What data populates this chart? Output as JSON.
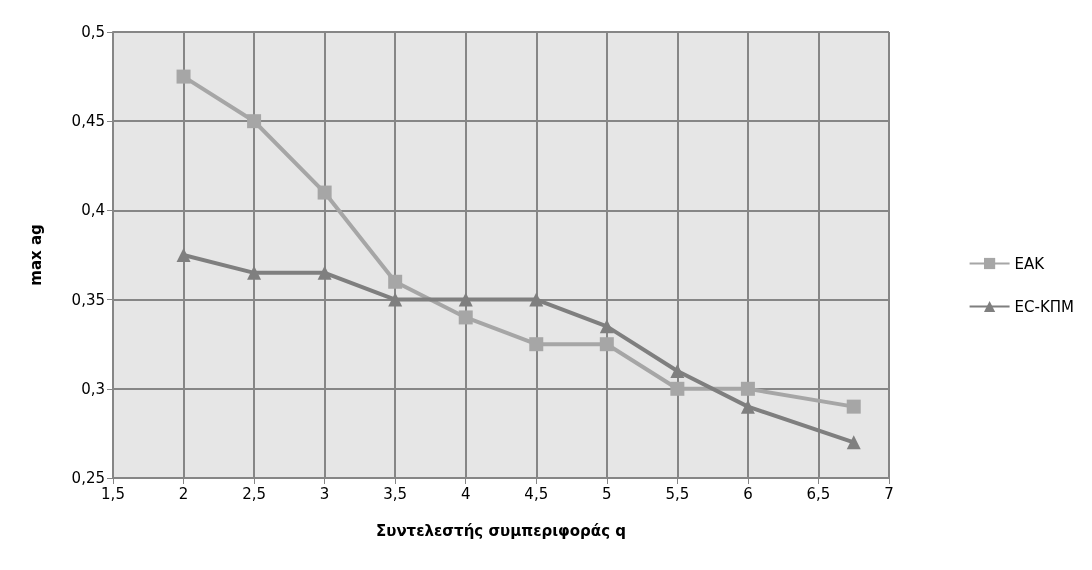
{
  "chart_data": {
    "type": "line",
    "xlabel": "Συντελεστής συμπεριφοράς q",
    "ylabel": "max ag",
    "x": [
      2,
      2.5,
      3,
      3.5,
      4,
      4.5,
      5,
      5.5,
      6,
      6.75
    ],
    "series": [
      {
        "name": "ΕΑΚ",
        "color": "#a6a6a6",
        "marker": "square",
        "values": [
          0.475,
          0.45,
          0.41,
          0.36,
          0.34,
          0.325,
          0.325,
          0.3,
          0.3,
          0.29
        ]
      },
      {
        "name": "EC-ΚΠΜ",
        "color": "#7f7f7f",
        "marker": "triangle",
        "values": [
          0.375,
          0.365,
          0.365,
          0.35,
          0.35,
          0.35,
          0.335,
          0.31,
          0.29,
          0.27
        ]
      }
    ],
    "xlim": [
      1.5,
      7
    ],
    "xticks": [
      {
        "value": 1.5,
        "label": "1,5"
      },
      2,
      {
        "value": 2.5,
        "label": "2,5"
      },
      3,
      {
        "value": 3.5,
        "label": "3,5"
      },
      4,
      {
        "value": 4.5,
        "label": "4,5"
      },
      5,
      {
        "value": 5.5,
        "label": "5,5"
      },
      6,
      {
        "value": 6.5,
        "label": "6,5"
      },
      7
    ],
    "ylim": [
      0.25,
      0.5
    ],
    "yticks": [
      {
        "value": 0.25,
        "label": "0,25"
      },
      {
        "value": 0.3,
        "label": "0,3"
      },
      {
        "value": 0.35,
        "label": "0,35"
      },
      {
        "value": 0.4,
        "label": "0,4"
      },
      {
        "value": 0.45,
        "label": "0,45"
      },
      {
        "value": 0.5,
        "label": "0,5"
      }
    ],
    "grid": true,
    "legend": "right",
    "line_style": "solid"
  }
}
